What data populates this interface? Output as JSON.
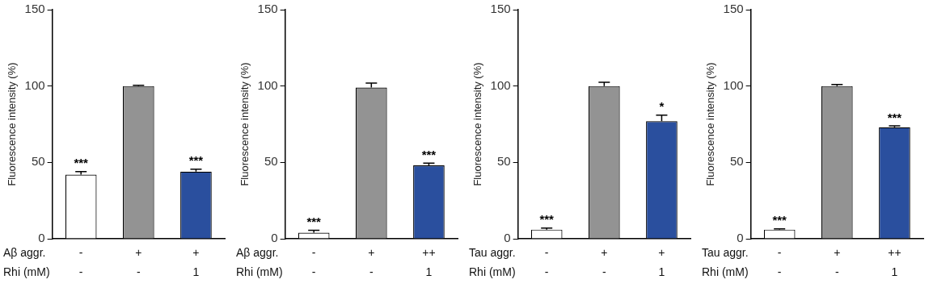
{
  "chart_data": [
    {
      "type": "bar",
      "y_label": "Fluorescence intensity (%)",
      "categories": [
        null,
        null,
        null
      ],
      "values": [
        42,
        100,
        44
      ],
      "errors": [
        2,
        0.5,
        1.5
      ],
      "significance": [
        "***",
        null,
        "***"
      ],
      "conditions": [
        {
          "name": "Aβ aggr.",
          "values": [
            "-",
            "+",
            "+"
          ]
        },
        {
          "name": "Rhi (mM)",
          "values": [
            "-",
            "-",
            "1"
          ]
        }
      ],
      "colors": [
        "#ffffff",
        "#939393",
        "#2a4f9e"
      ],
      "ylim": [
        0,
        150
      ],
      "yticks": [
        0,
        50,
        100,
        150
      ],
      "grid": false
    },
    {
      "type": "bar",
      "y_label": "Fluorescence intensity (%)",
      "categories": [
        null,
        null,
        null
      ],
      "values": [
        4,
        99,
        48
      ],
      "errors": [
        1.5,
        3,
        1.5
      ],
      "significance": [
        "***",
        null,
        "***"
      ],
      "conditions": [
        {
          "name": "Aβ aggr.",
          "values": [
            "-",
            "+",
            "++"
          ]
        },
        {
          "name": "Rhi (mM)",
          "values": [
            "-",
            "-",
            "1"
          ]
        }
      ],
      "colors": [
        "#ffffff",
        "#939393",
        "#2a4f9e"
      ],
      "ylim": [
        0,
        150
      ],
      "yticks": [
        0,
        50,
        100,
        150
      ],
      "grid": false
    },
    {
      "type": "bar",
      "y_label": "Fluorescence intensity (%)",
      "categories": [
        null,
        null,
        null
      ],
      "values": [
        6,
        100,
        77
      ],
      "errors": [
        1,
        2.5,
        4
      ],
      "significance": [
        "***",
        null,
        "*"
      ],
      "conditions": [
        {
          "name": "Tau aggr.",
          "values": [
            "-",
            "+",
            "+"
          ]
        },
        {
          "name": "Rhi (mM)",
          "values": [
            "-",
            "-",
            "1"
          ]
        }
      ],
      "colors": [
        "#ffffff",
        "#939393",
        "#2a4f9e"
      ],
      "ylim": [
        0,
        150
      ],
      "yticks": [
        0,
        50,
        100,
        150
      ],
      "grid": false
    },
    {
      "type": "bar",
      "y_label": "Fluorescence intensity (%)",
      "categories": [
        null,
        null,
        null
      ],
      "values": [
        6,
        100,
        73
      ],
      "errors": [
        0.5,
        1,
        1
      ],
      "significance": [
        "***",
        null,
        "***"
      ],
      "conditions": [
        {
          "name": "Tau aggr.",
          "values": [
            "-",
            "+",
            "++"
          ]
        },
        {
          "name": "Rhi (mM)",
          "values": [
            "-",
            "-",
            "1"
          ]
        }
      ],
      "colors": [
        "#ffffff",
        "#939393",
        "#2a4f9e"
      ],
      "ylim": [
        0,
        150
      ],
      "yticks": [
        0,
        50,
        100,
        150
      ],
      "grid": false
    }
  ]
}
